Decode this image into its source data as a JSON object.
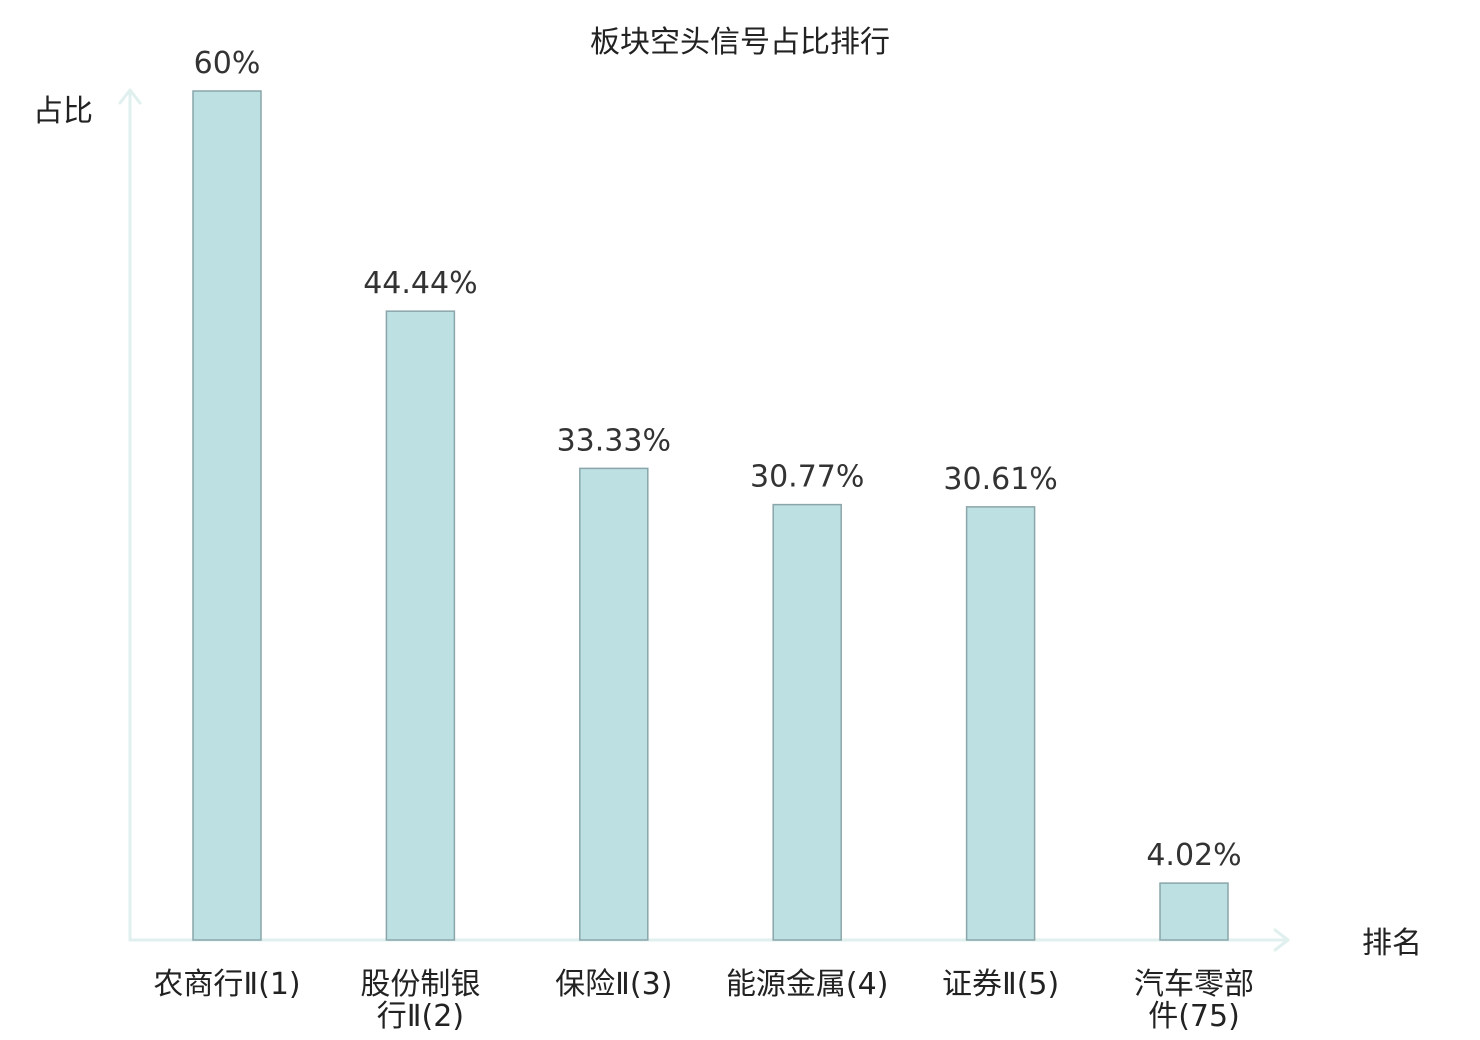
{
  "chart_data": {
    "type": "bar",
    "title": "板块空头信号占比排行",
    "ylabel": "占比",
    "xlabel": "排名",
    "categories": [
      {
        "lines": [
          "农商行Ⅱ(1)"
        ],
        "highlight": false
      },
      {
        "lines": [
          "股份制银",
          "行Ⅱ(2)"
        ],
        "highlight": false
      },
      {
        "lines": [
          "保险Ⅱ(3)"
        ],
        "highlight": false
      },
      {
        "lines": [
          "能源金属(4)"
        ],
        "highlight": false
      },
      {
        "lines": [
          "证券Ⅱ(5)"
        ],
        "highlight": false
      },
      {
        "lines": [
          "汽车零部",
          "件(75)"
        ],
        "highlight": true
      }
    ],
    "values": [
      60,
      44.44,
      33.33,
      30.77,
      30.61,
      4.02
    ],
    "value_labels": [
      "60%",
      "44.44%",
      "33.33%",
      "30.77%",
      "30.61%",
      "4.02%"
    ],
    "ylim": [
      0,
      60
    ],
    "grid": false,
    "colors": {
      "bar_fill": "#bde0e3",
      "bar_stroke": "#8aa6aa",
      "axis": "#dff0ee",
      "text": "#222222",
      "highlight_text": "#e8141c"
    }
  }
}
